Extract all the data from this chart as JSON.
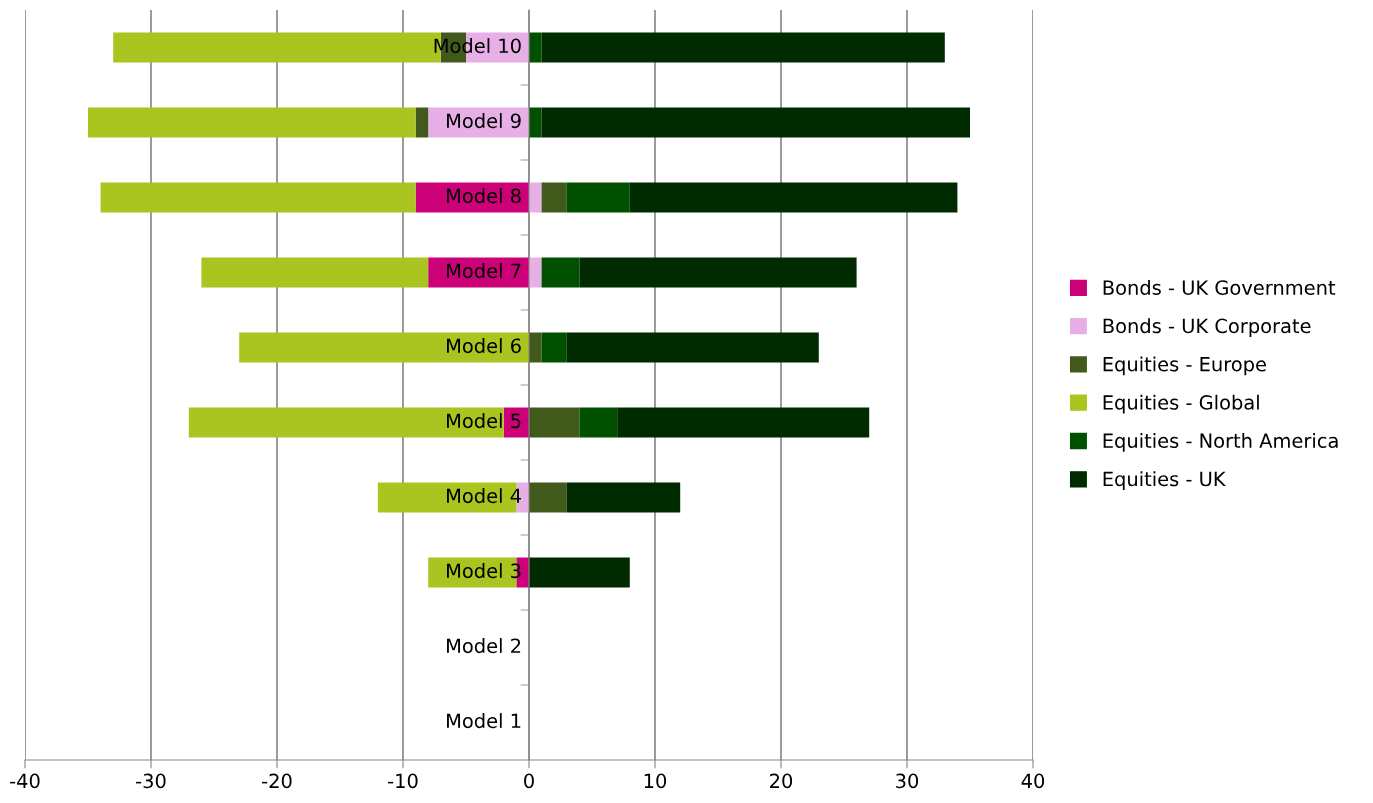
{
  "chart_data": {
    "type": "bar",
    "orientation": "horizontal",
    "stacked": true,
    "categories": [
      "Model 10",
      "Model 9",
      "Model 8",
      "Model 7",
      "Model 6",
      "Model 5",
      "Model 4",
      "Model 3",
      "Model 2",
      "Model 1"
    ],
    "series": [
      {
        "name": "Bonds - UK Government",
        "color": "#cc0077",
        "values": [
          0,
          0,
          -9,
          -8,
          0,
          -2,
          0,
          -1,
          0,
          0
        ]
      },
      {
        "name": "Bonds - UK Corporate",
        "color": "#e6b0e6",
        "values": [
          -5,
          -8,
          1,
          1,
          0,
          0,
          -1,
          0,
          0,
          0
        ]
      },
      {
        "name": "Equities - Europe",
        "color": "#42591c",
        "values": [
          -2,
          -1,
          2,
          0,
          1,
          4,
          3,
          0,
          0,
          0
        ]
      },
      {
        "name": "Equities - Global",
        "color": "#aac420",
        "values": [
          -26,
          -26,
          -25,
          -18,
          -23,
          -25,
          -11,
          -7,
          0,
          0
        ]
      },
      {
        "name": "Equities - North America",
        "color": "#005000",
        "values": [
          1,
          1,
          5,
          3,
          2,
          3,
          0,
          0,
          0,
          0
        ]
      },
      {
        "name": "Equities - UK",
        "color": "#002a00",
        "values": [
          32,
          34,
          26,
          22,
          20,
          20,
          9,
          8,
          0,
          0
        ]
      }
    ],
    "xlim": [
      -40,
      40
    ],
    "xticks": [
      -40,
      -30,
      -20,
      -10,
      0,
      10,
      20,
      30,
      40
    ],
    "grid": "x",
    "legend": "right"
  }
}
